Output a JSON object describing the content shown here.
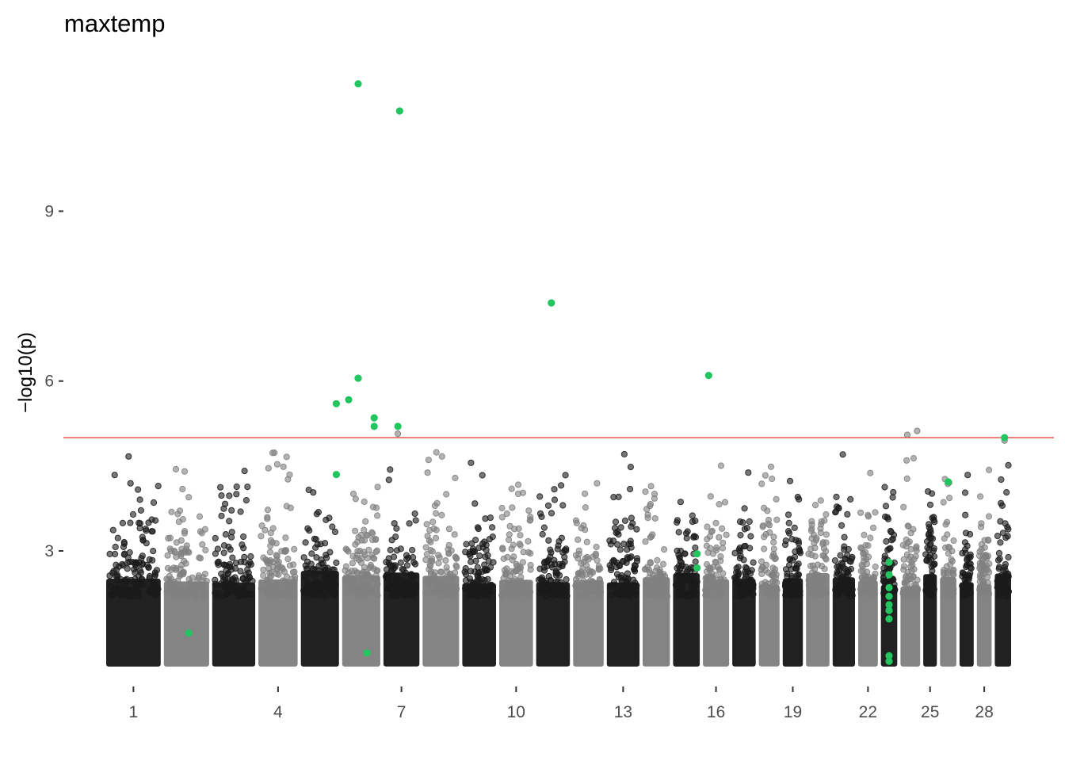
{
  "chart_data": {
    "type": "scatter",
    "subtype": "manhattan",
    "title": "maxtemp",
    "xlabel": "",
    "ylabel": "−log10(p)",
    "ylim": [
      0.7,
      11.6
    ],
    "y_ticks": [
      3,
      6,
      9
    ],
    "x_tick_labels": [
      "1",
      "4",
      "7",
      "10",
      "13",
      "16",
      "19",
      "22",
      "25",
      "28"
    ],
    "x_tick_chromosomes": [
      1,
      4,
      7,
      10,
      13,
      16,
      19,
      22,
      25,
      28
    ],
    "chromosome_count": 29,
    "chromosome_relative_sizes": [
      1.0,
      0.83,
      0.79,
      0.72,
      0.7,
      0.7,
      0.66,
      0.67,
      0.62,
      0.62,
      0.62,
      0.56,
      0.6,
      0.5,
      0.49,
      0.48,
      0.43,
      0.38,
      0.37,
      0.43,
      0.41,
      0.36,
      0.3,
      0.36,
      0.25,
      0.3,
      0.26,
      0.27,
      0.3
    ],
    "chromosome_colors": [
      "#1a1a1a",
      "#808080"
    ],
    "significance_threshold": 5.0,
    "threshold_color": "#e5534b",
    "highlight_color": "#22c55e",
    "grid": false,
    "legend": "none",
    "highlighted_points": [
      {
        "chr": 2,
        "pos": 0.55,
        "y": 1.55
      },
      {
        "chr": 5,
        "pos": 0.93,
        "y": 4.35
      },
      {
        "chr": 5,
        "pos": 0.93,
        "y": 5.6
      },
      {
        "chr": 6,
        "pos": 0.17,
        "y": 5.67
      },
      {
        "chr": 6,
        "pos": 0.42,
        "y": 11.25
      },
      {
        "chr": 6,
        "pos": 0.42,
        "y": 6.05
      },
      {
        "chr": 6,
        "pos": 0.65,
        "y": 1.2
      },
      {
        "chr": 6,
        "pos": 0.84,
        "y": 5.35
      },
      {
        "chr": 6,
        "pos": 0.84,
        "y": 5.2
      },
      {
        "chr": 7,
        "pos": 0.4,
        "y": 5.2
      },
      {
        "chr": 7,
        "pos": 0.45,
        "y": 10.77
      },
      {
        "chr": 11,
        "pos": 0.45,
        "y": 7.38
      },
      {
        "chr": 15,
        "pos": 0.9,
        "y": 2.95
      },
      {
        "chr": 15,
        "pos": 0.9,
        "y": 2.7
      },
      {
        "chr": 16,
        "pos": 0.22,
        "y": 6.1
      },
      {
        "chr": 23,
        "pos": 0.5,
        "y": 2.8
      },
      {
        "chr": 23,
        "pos": 0.5,
        "y": 2.58
      },
      {
        "chr": 23,
        "pos": 0.5,
        "y": 2.35
      },
      {
        "chr": 23,
        "pos": 0.5,
        "y": 2.2
      },
      {
        "chr": 23,
        "pos": 0.5,
        "y": 2.05
      },
      {
        "chr": 23,
        "pos": 0.5,
        "y": 1.95
      },
      {
        "chr": 23,
        "pos": 0.5,
        "y": 1.8
      },
      {
        "chr": 23,
        "pos": 0.5,
        "y": 1.15
      },
      {
        "chr": 23,
        "pos": 0.5,
        "y": 1.05
      },
      {
        "chr": 26,
        "pos": 0.5,
        "y": 4.22
      },
      {
        "chr": 29,
        "pos": 0.6,
        "y": 5.0
      }
    ],
    "notable_points": [
      {
        "chr": 7,
        "pos": 0.4,
        "y": 5.07
      },
      {
        "chr": 24,
        "pos": 0.35,
        "y": 5.05
      },
      {
        "chr": 24,
        "pos": 0.85,
        "y": 5.12
      },
      {
        "chr": 29,
        "pos": 0.6,
        "y": 4.95
      }
    ]
  }
}
